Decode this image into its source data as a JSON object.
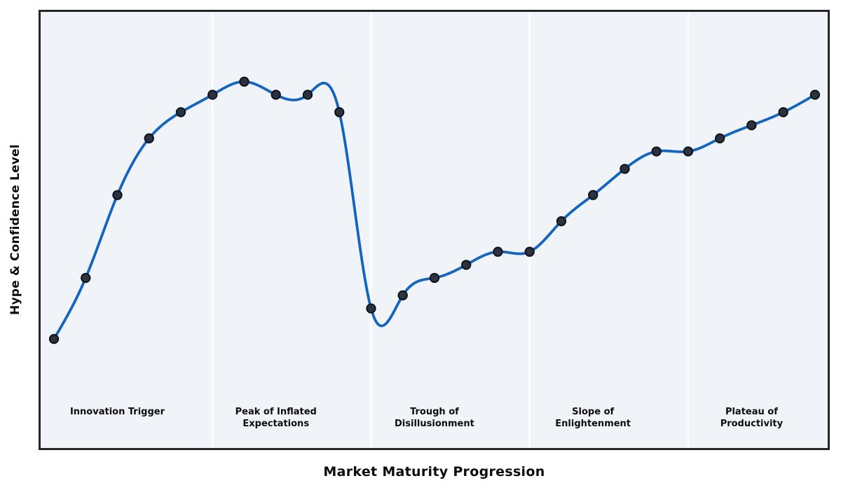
{
  "chart_data": {
    "type": "line",
    "title": "",
    "xlabel": "Market Maturity Progression",
    "ylabel": "Hype & Confidence Level",
    "x": [
      0,
      1,
      2,
      3,
      4,
      5,
      6,
      7,
      8,
      9,
      10,
      11,
      12,
      13,
      14,
      15,
      16,
      17,
      18,
      19,
      20,
      21,
      22,
      23,
      24
    ],
    "values": [
      25,
      39,
      58,
      71,
      77,
      81,
      84,
      81,
      81,
      77,
      32,
      35,
      39,
      42,
      45,
      45,
      52,
      58,
      64,
      68,
      68,
      71,
      74,
      77,
      81
    ],
    "xlim": [
      -0.42,
      24.4
    ],
    "ylim": [
      0,
      100
    ],
    "grid": false,
    "legend": null,
    "ticks": "none",
    "smoothing": "natural-cubic-spline",
    "line_color": "#1565c0",
    "line_width": 3.8,
    "marker_color": "#2b3340",
    "marker_edge_color": "#0e1116",
    "marker_radius": 6.2,
    "plot_bg": "#f0f4f8",
    "border_color": "#262626",
    "divider_color": "#ffffff",
    "phases": [
      {
        "label": "Innovation Trigger",
        "lines": [
          "Innovation Trigger"
        ],
        "label_x": 2,
        "boundary_x": 5
      },
      {
        "label": "Peak of Inflated Expectations",
        "lines": [
          "Peak of Inflated",
          "Expectations"
        ],
        "label_x": 7,
        "boundary_x": 10
      },
      {
        "label": "Trough of Disillusionment",
        "lines": [
          "Trough of",
          "Disillusionment"
        ],
        "label_x": 12,
        "boundary_x": 15
      },
      {
        "label": "Slope of Enlightenment",
        "lines": [
          "Slope of",
          "Enlightenment"
        ],
        "label_x": 17,
        "boundary_x": 20
      },
      {
        "label": "Plateau of Productivity",
        "lines": [
          "Plateau of",
          "Productivity"
        ],
        "label_x": 22,
        "boundary_x": null
      }
    ]
  }
}
